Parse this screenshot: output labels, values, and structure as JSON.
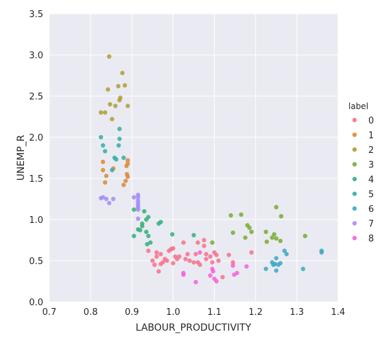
{
  "chart_data": {
    "type": "scatter",
    "xlabel": "LABOUR_PRODUCTIVITY",
    "ylabel": "UNEMP_R",
    "xlim": [
      0.7,
      1.4
    ],
    "ylim": [
      0.0,
      3.5
    ],
    "xticks": [
      "0.7",
      "0.8",
      "0.9",
      "1.0",
      "1.1",
      "1.2",
      "1.3",
      "1.4"
    ],
    "yticks": [
      "0.0",
      "0.5",
      "1.0",
      "1.5",
      "2.0",
      "2.5",
      "3.0",
      "3.5"
    ],
    "grid": true,
    "background": "#eaeaf2",
    "legend": {
      "title": "label",
      "placement": "right"
    },
    "series": [
      {
        "name": "0",
        "color": "#f77189",
        "points": [
          [
            0.94,
            0.62
          ],
          [
            0.95,
            0.5
          ],
          [
            0.955,
            0.45
          ],
          [
            0.96,
            0.55
          ],
          [
            0.96,
            0.6
          ],
          [
            0.965,
            0.37
          ],
          [
            0.97,
            0.58
          ],
          [
            0.97,
            0.46
          ],
          [
            0.975,
            0.48
          ],
          [
            0.98,
            0.52
          ],
          [
            0.985,
            0.5
          ],
          [
            0.99,
            0.62
          ],
          [
            0.995,
            0.64
          ],
          [
            1.0,
            0.65
          ],
          [
            1.0,
            0.47
          ],
          [
            1.005,
            0.55
          ],
          [
            1.01,
            0.52
          ],
          [
            1.015,
            0.55
          ],
          [
            1.025,
            0.72
          ],
          [
            1.03,
            0.52
          ],
          [
            1.035,
            0.58
          ],
          [
            1.04,
            0.5
          ],
          [
            1.05,
            0.48
          ],
          [
            1.06,
            0.72
          ],
          [
            1.055,
            0.58
          ],
          [
            1.06,
            0.48
          ],
          [
            1.065,
            0.45
          ],
          [
            1.075,
            0.75
          ],
          [
            1.075,
            0.68
          ],
          [
            1.08,
            0.52
          ],
          [
            1.09,
            0.55
          ],
          [
            1.095,
            0.48
          ],
          [
            1.08,
            0.58
          ],
          [
            1.1,
            0.6
          ],
          [
            1.105,
            0.57
          ],
          [
            1.11,
            0.5
          ],
          [
            1.12,
            0.3
          ],
          [
            1.135,
            0.57
          ],
          [
            1.145,
            0.48
          ],
          [
            1.19,
            0.6
          ]
        ]
      },
      {
        "name": "1",
        "color": "#dc8932",
        "points": [
          [
            0.83,
            1.7
          ],
          [
            0.83,
            1.6
          ],
          [
            0.835,
            1.45
          ],
          [
            0.838,
            1.53
          ],
          [
            0.855,
            1.62
          ],
          [
            0.88,
            1.42
          ],
          [
            0.885,
            1.47
          ],
          [
            0.887,
            1.65
          ],
          [
            0.888,
            1.55
          ],
          [
            0.89,
            1.68
          ],
          [
            0.89,
            1.52
          ],
          [
            0.89,
            1.72
          ]
        ]
      },
      {
        "name": "2",
        "color": "#ae9d31",
        "points": [
          [
            0.825,
            2.3
          ],
          [
            0.835,
            2.3
          ],
          [
            0.842,
            2.58
          ],
          [
            0.845,
            2.98
          ],
          [
            0.847,
            2.4
          ],
          [
            0.852,
            2.22
          ],
          [
            0.86,
            2.38
          ],
          [
            0.867,
            2.62
          ],
          [
            0.87,
            2.45
          ],
          [
            0.872,
            2.48
          ],
          [
            0.877,
            2.78
          ],
          [
            0.883,
            2.63
          ],
          [
            0.89,
            2.38
          ]
        ]
      },
      {
        "name": "3",
        "color": "#77ab31",
        "points": [
          [
            1.095,
            0.72
          ],
          [
            1.14,
            1.05
          ],
          [
            1.145,
            0.84
          ],
          [
            1.165,
            1.06
          ],
          [
            1.175,
            0.78
          ],
          [
            1.18,
            0.93
          ],
          [
            1.185,
            0.9
          ],
          [
            1.19,
            0.85
          ],
          [
            1.225,
            0.85
          ],
          [
            1.227,
            0.73
          ],
          [
            1.24,
            0.78
          ],
          [
            1.245,
            0.82
          ],
          [
            1.25,
            1.15
          ],
          [
            1.25,
            0.77
          ],
          [
            1.26,
            0.74
          ],
          [
            1.262,
            1.04
          ],
          [
            1.32,
            0.8
          ]
        ]
      },
      {
        "name": "4",
        "color": "#33b07a",
        "points": [
          [
            0.905,
            1.12
          ],
          [
            0.905,
            0.8
          ],
          [
            0.915,
            0.88
          ],
          [
            0.92,
            0.87
          ],
          [
            0.925,
            0.95
          ],
          [
            0.925,
            0.92
          ],
          [
            0.93,
            1.1
          ],
          [
            0.935,
            1.0
          ],
          [
            0.935,
            0.85
          ],
          [
            0.937,
            0.7
          ],
          [
            0.94,
            0.8
          ],
          [
            0.94,
            1.03
          ],
          [
            0.945,
            0.72
          ],
          [
            0.965,
            0.95
          ],
          [
            0.97,
            0.97
          ],
          [
            0.998,
            0.82
          ],
          [
            1.05,
            0.81
          ]
        ]
      },
      {
        "name": "5",
        "color": "#36ada4",
        "points": [
          [
            0.825,
            2.0
          ],
          [
            0.83,
            1.9
          ],
          [
            0.835,
            1.83
          ],
          [
            0.852,
            1.6
          ],
          [
            0.858,
            1.75
          ],
          [
            0.862,
            1.73
          ],
          [
            0.868,
            1.9
          ],
          [
            0.87,
            1.98
          ],
          [
            0.87,
            2.1
          ],
          [
            0.88,
            1.75
          ]
        ]
      },
      {
        "name": "6",
        "color": "#38a9c5",
        "points": [
          [
            1.225,
            0.4
          ],
          [
            1.24,
            0.48
          ],
          [
            1.243,
            0.45
          ],
          [
            1.247,
            0.46
          ],
          [
            1.25,
            0.53
          ],
          [
            1.25,
            0.38
          ],
          [
            1.255,
            0.45
          ],
          [
            1.26,
            0.47
          ],
          [
            1.27,
            0.62
          ],
          [
            1.275,
            0.58
          ],
          [
            1.315,
            0.4
          ],
          [
            1.36,
            0.6
          ],
          [
            1.36,
            0.62
          ]
        ]
      },
      {
        "name": "7",
        "color": "#a48cf4",
        "points": [
          [
            0.825,
            1.26
          ],
          [
            0.83,
            1.27
          ],
          [
            0.838,
            1.25
          ],
          [
            0.845,
            1.2
          ],
          [
            0.855,
            1.25
          ],
          [
            0.905,
            1.27
          ],
          [
            0.915,
            1.3
          ],
          [
            0.915,
            1.27
          ],
          [
            0.915,
            1.23
          ],
          [
            0.915,
            1.2
          ],
          [
            0.915,
            1.17
          ],
          [
            0.915,
            1.14
          ],
          [
            0.915,
            1.12
          ],
          [
            0.915,
            1.01
          ]
        ]
      },
      {
        "name": "8",
        "color": "#f561dd",
        "points": [
          [
            1.025,
            0.35
          ],
          [
            1.025,
            0.33
          ],
          [
            1.055,
            0.24
          ],
          [
            1.065,
            0.6
          ],
          [
            1.09,
            0.32
          ],
          [
            1.095,
            0.4
          ],
          [
            1.097,
            0.37
          ],
          [
            1.1,
            0.28
          ],
          [
            1.105,
            0.25
          ],
          [
            1.145,
            0.44
          ],
          [
            1.148,
            0.33
          ],
          [
            1.155,
            0.35
          ],
          [
            1.178,
            0.43
          ]
        ]
      }
    ]
  }
}
